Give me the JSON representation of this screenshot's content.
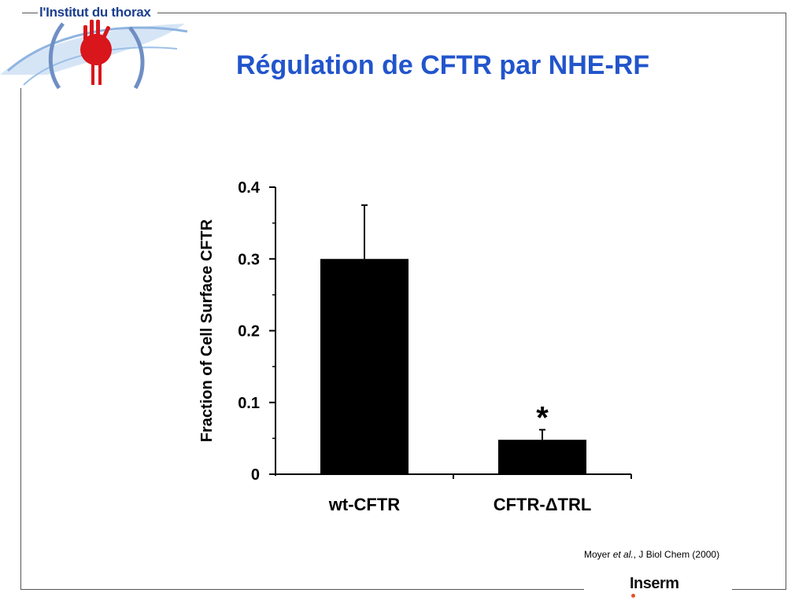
{
  "header": {
    "brand_text": "l'Institut du thorax",
    "logo_icon": "heart-hand-logo-icon"
  },
  "slide": {
    "title": "Régulation de CFTR par NHE-RF"
  },
  "citation": {
    "authors": "Moyer",
    "etal": "et al.",
    "rest": ", J Biol Chem (2000)"
  },
  "footer": {
    "logo_text": "Inserm"
  },
  "colors": {
    "title": "#2255cc",
    "brand": "#1c3f8e",
    "bar": "#000000",
    "frame": "#555555",
    "inserm_dot": "#e8502a"
  },
  "chart_data": {
    "type": "bar",
    "title": "",
    "xlabel": "",
    "ylabel": "Fraction of Cell Surface CFTR",
    "categories": [
      "wt-CFTR",
      "CFTR-ΔTRL"
    ],
    "values": [
      0.3,
      0.048
    ],
    "error_upper": [
      0.375,
      0.062
    ],
    "annotations": [
      "",
      "*"
    ],
    "ylim": [
      0,
      0.4
    ],
    "yticks": [
      0,
      0.1,
      0.2,
      0.3,
      0.4
    ],
    "ytick_labels": [
      "0",
      "0.1",
      "0.2",
      "0.3",
      "0.4"
    ],
    "grid": false,
    "legend": "none"
  }
}
